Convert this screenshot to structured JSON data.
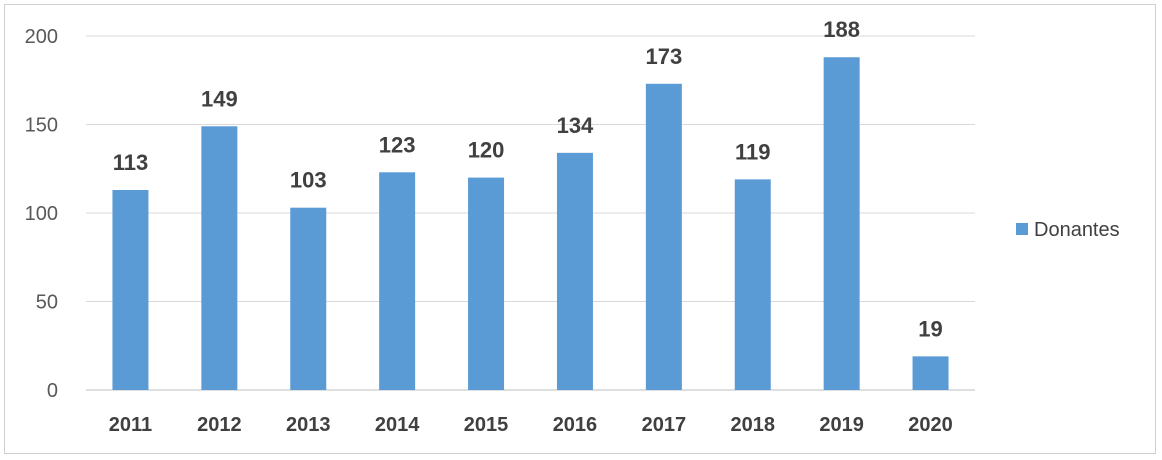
{
  "chart_data": {
    "type": "bar",
    "categories": [
      "2011",
      "2012",
      "2013",
      "2014",
      "2015",
      "2016",
      "2017",
      "2018",
      "2019",
      "2020"
    ],
    "series": [
      {
        "name": "Donantes",
        "values": [
          113,
          149,
          103,
          123,
          120,
          134,
          173,
          119,
          188,
          19
        ],
        "color": "#5b9bd5"
      }
    ],
    "ylim": [
      0,
      200
    ],
    "yticks": [
      0,
      50,
      100,
      150,
      200
    ],
    "grid": true,
    "legend": "right",
    "data_labels": true
  }
}
